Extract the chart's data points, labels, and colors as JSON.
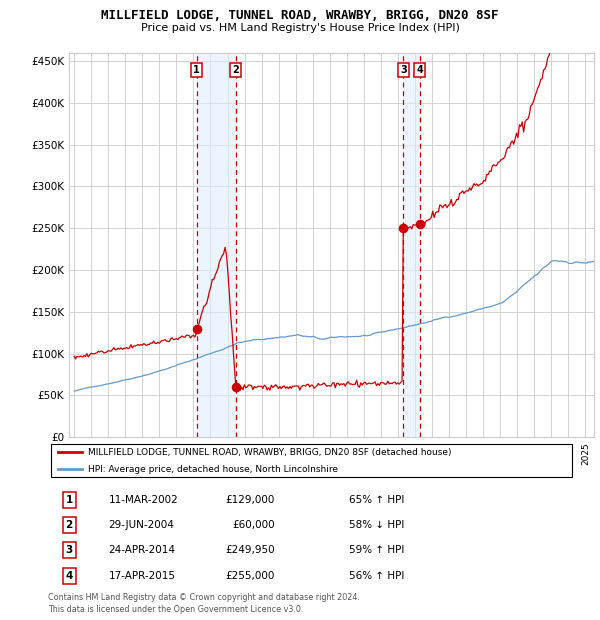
{
  "title": "MILLFIELD LODGE, TUNNEL ROAD, WRAWBY, BRIGG, DN20 8SF",
  "subtitle": "Price paid vs. HM Land Registry's House Price Index (HPI)",
  "ylim": [
    0,
    460000
  ],
  "yticks": [
    0,
    50000,
    100000,
    150000,
    200000,
    250000,
    300000,
    350000,
    400000,
    450000
  ],
  "ytick_labels": [
    "£0",
    "£50K",
    "£100K",
    "£150K",
    "£200K",
    "£250K",
    "£300K",
    "£350K",
    "£400K",
    "£450K"
  ],
  "xlim_start": 1994.7,
  "xlim_end": 2025.5,
  "transactions": [
    {
      "num": 1,
      "date_label": "11-MAR-2002",
      "date_x": 2002.19,
      "price": 129000,
      "pct": "65%",
      "dir": "↑"
    },
    {
      "num": 2,
      "date_label": "29-JUN-2004",
      "date_x": 2004.49,
      "price": 60000,
      "pct": "58%",
      "dir": "↓"
    },
    {
      "num": 3,
      "date_label": "24-APR-2014",
      "date_x": 2014.31,
      "price": 249950,
      "pct": "59%",
      "dir": "↑"
    },
    {
      "num": 4,
      "date_label": "17-APR-2015",
      "date_x": 2015.29,
      "price": 255000,
      "pct": "56%",
      "dir": "↑"
    }
  ],
  "legend_property_label": "MILLFIELD LODGE, TUNNEL ROAD, WRAWBY, BRIGG, DN20 8SF (detached house)",
  "legend_hpi_label": "HPI: Average price, detached house, North Lincolnshire",
  "footer_line1": "Contains HM Land Registry data © Crown copyright and database right 2024.",
  "footer_line2": "This data is licensed under the Open Government Licence v3.0.",
  "property_line_color": "#cc0000",
  "hpi_line_color": "#6699cc",
  "transaction_marker_color": "#cc0000",
  "dashed_line_color": "#cc0000",
  "shade_color": "#ddeeff",
  "label_box_color": "#cc0000",
  "grid_color": "#cccccc",
  "background_color": "#ffffff"
}
